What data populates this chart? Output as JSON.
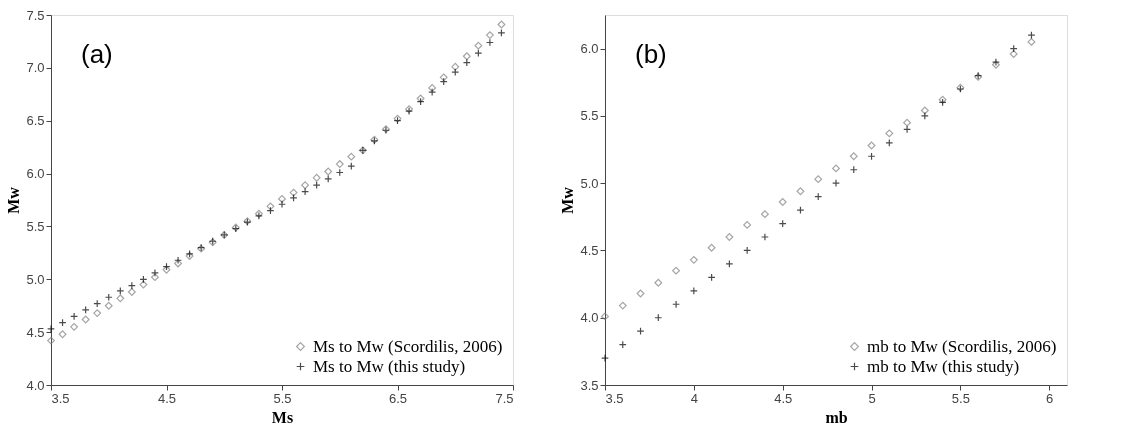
{
  "chart_data": [
    {
      "type": "scatter",
      "annotations": [
        "(a)"
      ],
      "xlabel": "Ms",
      "ylabel": "Mw",
      "legend": "bottom right",
      "grid": false,
      "xlim": [
        3.5,
        7.5
      ],
      "xticks": [
        3.5,
        4.5,
        5.5,
        6.5,
        7.5
      ],
      "ylim": [
        4,
        7.5
      ],
      "yticks": [
        {
          "value": 4,
          "label": "4.0"
        },
        4.5,
        {
          "value": 5,
          "label": "5.0"
        },
        5.5,
        {
          "value": 6,
          "label": "6.0"
        },
        6.5,
        {
          "value": 7,
          "label": "7.0"
        },
        7.5
      ],
      "x": [
        3.5,
        3.6,
        3.7,
        3.8,
        3.9,
        4.0,
        4.1,
        4.2,
        4.3,
        4.4,
        4.5,
        4.6,
        4.7,
        4.8,
        4.9,
        5.0,
        5.1,
        5.2,
        5.3,
        5.4,
        5.5,
        5.6,
        5.7,
        5.8,
        5.9,
        6.0,
        6.1,
        6.2,
        6.3,
        6.4,
        6.5,
        6.6,
        6.7,
        6.8,
        6.9,
        7.0,
        7.1,
        7.2,
        7.3,
        7.4
      ],
      "series": [
        {
          "name": "Ms to Mw (Scordilis, 2006)",
          "color": "#7f7f7f",
          "marker": "diamond",
          "values": [
            4.42,
            4.48,
            4.55,
            4.62,
            4.68,
            4.75,
            4.82,
            4.88,
            4.95,
            5.02,
            5.09,
            5.15,
            5.22,
            5.29,
            5.35,
            5.42,
            5.49,
            5.55,
            5.62,
            5.69,
            5.76,
            5.82,
            5.89,
            5.96,
            6.02,
            6.09,
            6.16,
            6.22,
            6.32,
            6.42,
            6.52,
            6.61,
            6.71,
            6.81,
            6.91,
            7.01,
            7.11,
            7.21,
            7.31,
            7.41
          ]
        },
        {
          "name": "Ms to Mw (this study)",
          "color": "#000000",
          "marker": "cross",
          "values": [
            4.53,
            4.59,
            4.65,
            4.71,
            4.77,
            4.83,
            4.89,
            4.94,
            5.0,
            5.06,
            5.12,
            5.18,
            5.24,
            5.3,
            5.36,
            5.42,
            5.48,
            5.54,
            5.6,
            5.65,
            5.71,
            5.77,
            5.83,
            5.89,
            5.95,
            6.01,
            6.07,
            6.22,
            6.31,
            6.41,
            6.5,
            6.59,
            6.68,
            6.77,
            6.87,
            6.96,
            7.05,
            7.14,
            7.24,
            7.33
          ]
        }
      ]
    },
    {
      "type": "scatter",
      "annotations": [
        "(b)"
      ],
      "xlabel": "mb",
      "ylabel": "Mw",
      "legend": "bottom right",
      "grid": false,
      "xlim": [
        3.5,
        6.1
      ],
      "xticks": [
        3.5,
        4,
        4.5,
        5,
        5.5,
        6
      ],
      "ylim": [
        3.5,
        6.25
      ],
      "yticks": [
        3.5,
        {
          "value": 4,
          "label": "4.0"
        },
        4.5,
        {
          "value": 5,
          "label": "5.0"
        },
        5.5,
        {
          "value": 6,
          "label": "6.0"
        }
      ],
      "x": [
        3.5,
        3.6,
        3.7,
        3.8,
        3.9,
        4.0,
        4.1,
        4.2,
        4.3,
        4.4,
        4.5,
        4.6,
        4.7,
        4.8,
        4.9,
        5.0,
        5.1,
        5.2,
        5.3,
        5.4,
        5.5,
        5.6,
        5.7,
        5.8,
        5.9
      ],
      "series": [
        {
          "name": "mb to Mw (Scordilis, 2006)",
          "color": "#7f7f7f",
          "marker": "diamond",
          "values": [
            4.01,
            4.09,
            4.18,
            4.26,
            4.35,
            4.43,
            4.52,
            4.6,
            4.69,
            4.77,
            4.86,
            4.94,
            5.03,
            5.11,
            5.2,
            5.28,
            5.37,
            5.45,
            5.54,
            5.62,
            5.71,
            5.79,
            5.88,
            5.96,
            6.05
          ]
        },
        {
          "name": "mb to Mw (this study)",
          "color": "#000000",
          "marker": "cross",
          "values": [
            3.7,
            3.8,
            3.9,
            4.0,
            4.1,
            4.2,
            4.3,
            4.4,
            4.5,
            4.6,
            4.7,
            4.8,
            4.9,
            5.0,
            5.1,
            5.2,
            5.3,
            5.4,
            5.5,
            5.6,
            5.7,
            5.8,
            5.9,
            6.0,
            6.1
          ]
        }
      ]
    }
  ]
}
